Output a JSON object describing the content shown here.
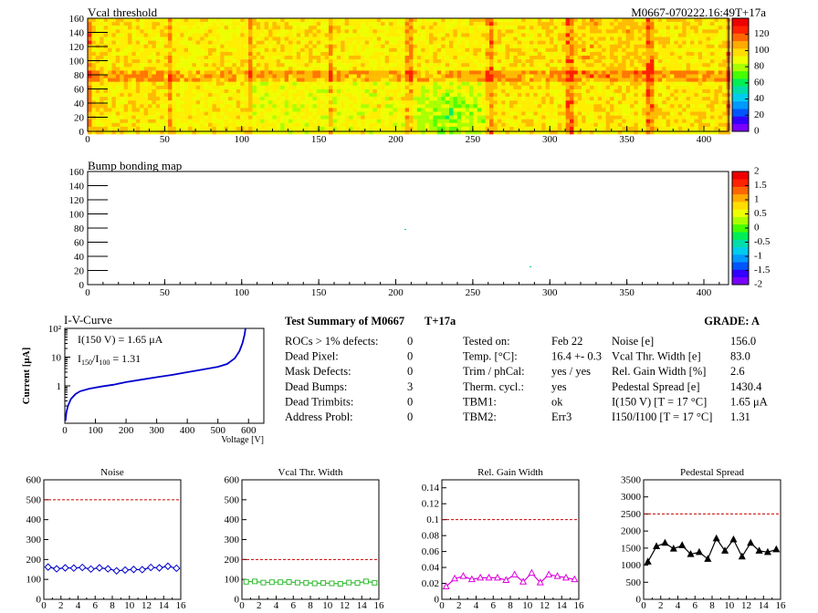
{
  "header": {
    "vcal_title": "Vcal threshold",
    "module_id": "M0667-070222.16:49T+17a",
    "bump_title": "Bump bonding map"
  },
  "maps": {
    "x_ticks": [
      "0",
      "50",
      "100",
      "150",
      "200",
      "250",
      "300",
      "350",
      "400"
    ],
    "y_ticks": [
      "0",
      "20",
      "40",
      "60",
      "80",
      "100",
      "120",
      "140",
      "160"
    ],
    "vcal_scale": [
      "0",
      "20",
      "40",
      "60",
      "80",
      "100",
      "120"
    ],
    "bump_scale": [
      "-2",
      "-1.5",
      "-1",
      "-0.5",
      "0",
      "0.5",
      "1",
      "1.5",
      "2"
    ],
    "vcal_palette": [
      "#7a00ff",
      "#2222ff",
      "#0099ff",
      "#00ddcc",
      "#00ee66",
      "#55ff00",
      "#aaff00",
      "#eeff00",
      "#ffee00",
      "#ffbb00",
      "#ff7700",
      "#ff2200"
    ]
  },
  "iv": {
    "title": "I-V-Curve",
    "i150_label": "I(150 V) = 1.65 μA",
    "ratio_label_prefix": "I",
    "ratio_sub1": "150",
    "ratio_mid": "/I",
    "ratio_sub2": "100",
    "ratio_value": " =  1.31",
    "ylabel": "Current [μA]",
    "xlabel": "Voltage [V]",
    "x_ticks": [
      "0",
      "100",
      "200",
      "300",
      "400",
      "500",
      "600"
    ],
    "y_ticks": [
      "1",
      "10",
      "10²"
    ]
  },
  "summary": {
    "title": "Test Summary of M0667",
    "temp_tag": "T+17a",
    "grade": "GRADE:  A",
    "col1": [
      {
        "label": "ROCs > 1% defects:",
        "value": "0"
      },
      {
        "label": "Dead Pixel:",
        "value": "0"
      },
      {
        "label": "Mask Defects:",
        "value": "0"
      },
      {
        "label": "Dead Bumps:",
        "value": "3"
      },
      {
        "label": "Dead Trimbits:",
        "value": "0"
      },
      {
        "label": "Address Probl:",
        "value": "0"
      }
    ],
    "col2": [
      {
        "label": "Tested on:",
        "value": "Feb 22"
      },
      {
        "label": "Temp. [°C]:",
        "value": "16.4 +- 0.3"
      },
      {
        "label": "Trim / phCal:",
        "value": "yes / yes"
      },
      {
        "label": "Therm. cycl.:",
        "value": "yes"
      },
      {
        "label": "TBM1:",
        "value": "ok"
      },
      {
        "label": "TBM2:",
        "value": "Err3"
      }
    ],
    "col3": [
      {
        "label": "Noise [e]",
        "value": "156.0"
      },
      {
        "label": "Vcal Thr. Width [e]",
        "value": "83.0"
      },
      {
        "label": "Rel. Gain Width [%]",
        "value": "2.6"
      },
      {
        "label": "Pedestal Spread [e]",
        "value": "1430.4"
      },
      {
        "label": "I(150 V) [T = 17 °C]",
        "value": "1.65 μA"
      },
      {
        "label": "I150/I100  [T = 17 °C]",
        "value": "1.31"
      }
    ]
  },
  "chart_data": [
    {
      "type": "line",
      "title": "Noise",
      "color": "#0000cc",
      "marker": "diamond",
      "x": [
        0,
        1,
        2,
        3,
        4,
        5,
        6,
        7,
        8,
        9,
        10,
        11,
        12,
        13,
        14,
        15
      ],
      "values": [
        162,
        153,
        158,
        157,
        160,
        152,
        158,
        153,
        143,
        147,
        150,
        149,
        160,
        158,
        166,
        156
      ],
      "threshold": 500,
      "ylim": [
        0,
        600
      ],
      "xlim": [
        0,
        16
      ],
      "y_ticks": [
        "0",
        "100",
        "200",
        "300",
        "400",
        "500",
        "600"
      ],
      "x_ticks": [
        "0",
        "2",
        "4",
        "6",
        "8",
        "10",
        "12",
        "14",
        "16"
      ]
    },
    {
      "type": "line",
      "title": "Vcal Thr. Width",
      "color": "#33bb33",
      "marker": "square",
      "x": [
        0,
        1,
        2,
        3,
        4,
        5,
        6,
        7,
        8,
        9,
        10,
        11,
        12,
        13,
        14,
        15
      ],
      "values": [
        88,
        90,
        84,
        86,
        86,
        87,
        84,
        83,
        80,
        82,
        80,
        78,
        84,
        82,
        90,
        83
      ],
      "threshold": 200,
      "ylim": [
        0,
        600
      ],
      "xlim": [
        0,
        16
      ],
      "y_ticks": [
        "0",
        "100",
        "200",
        "300",
        "400",
        "500",
        "600"
      ],
      "x_ticks": [
        "0",
        "2",
        "4",
        "6",
        "8",
        "10",
        "12",
        "14",
        "16"
      ]
    },
    {
      "type": "line",
      "title": "Rel. Gain Width",
      "color": "#dd00dd",
      "marker": "triangle",
      "x": [
        0,
        1,
        2,
        3,
        4,
        5,
        6,
        7,
        8,
        9,
        10,
        11,
        12,
        13,
        14,
        15
      ],
      "values": [
        0.016,
        0.026,
        0.029,
        0.025,
        0.027,
        0.027,
        0.027,
        0.024,
        0.031,
        0.022,
        0.033,
        0.021,
        0.031,
        0.029,
        0.027,
        0.025
      ],
      "threshold": 0.1,
      "ylim": [
        0,
        0.15
      ],
      "xlim": [
        0,
        16
      ],
      "y_ticks": [
        "0",
        "0.02",
        "0.04",
        "0.06",
        "0.08",
        "0.1",
        "0.12",
        "0.14"
      ],
      "x_ticks": [
        "0",
        "2",
        "4",
        "6",
        "8",
        "10",
        "12",
        "14",
        "16"
      ]
    },
    {
      "type": "line",
      "title": "Pedestal Spread",
      "color": "#000000",
      "marker": "triangle",
      "x": [
        0,
        1,
        2,
        3,
        4,
        5,
        6,
        7,
        8,
        9,
        10,
        11,
        12,
        13,
        14,
        15
      ],
      "values": [
        1100,
        1550,
        1650,
        1480,
        1580,
        1320,
        1380,
        1180,
        1780,
        1420,
        1750,
        1250,
        1650,
        1420,
        1380,
        1460
      ],
      "threshold": 2500,
      "ylim": [
        0,
        3500
      ],
      "xlim": [
        0,
        16
      ],
      "y_ticks": [
        "0",
        "500",
        "1000",
        "1500",
        "2000",
        "2500",
        "3000",
        "3500"
      ],
      "x_ticks": [
        "0",
        "2",
        "4",
        "6",
        "8",
        "10",
        "12",
        "14",
        "16"
      ]
    }
  ]
}
